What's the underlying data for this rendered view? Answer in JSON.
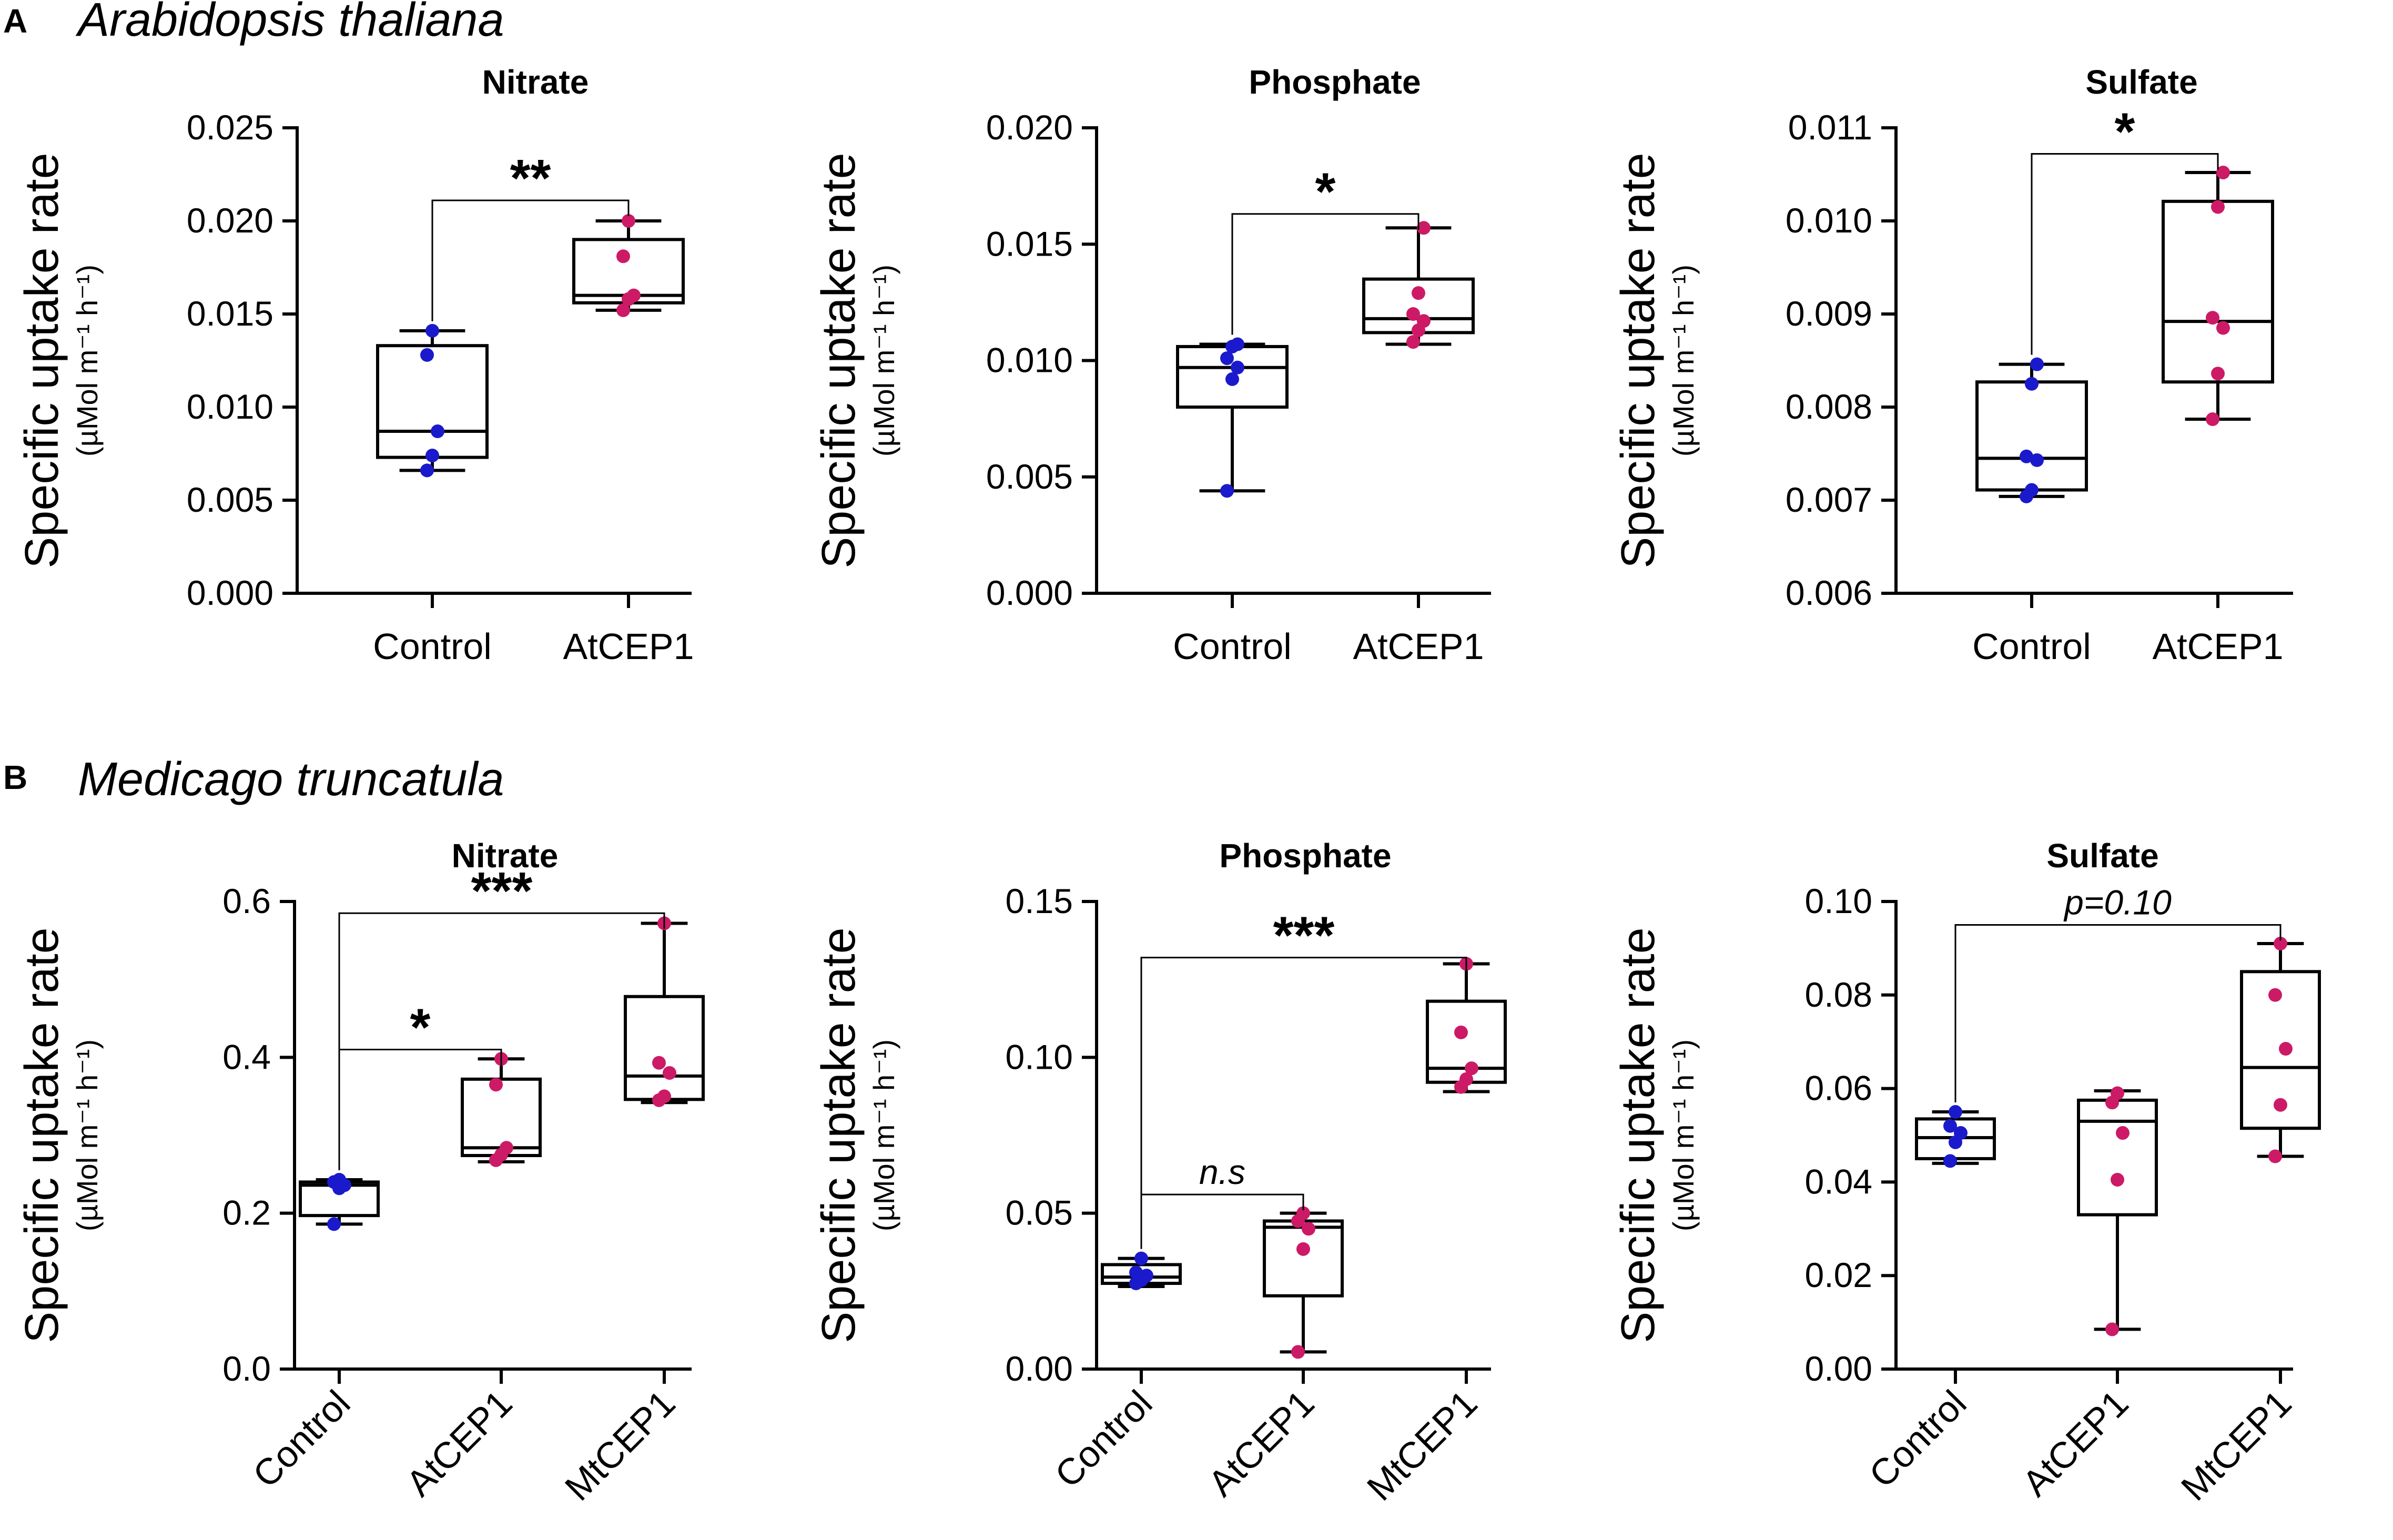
{
  "chart_data": [
    {
      "type": "box",
      "panel": "A",
      "species": "Arabidopsis thaliana",
      "title": "Nitrate",
      "ylabel": "Specific uptake rate",
      "yunit": "(µMol m⁻¹ h⁻¹)",
      "ylim": [
        0,
        0.025
      ],
      "yticks": [
        0.0,
        0.005,
        0.01,
        0.015,
        0.02,
        0.025
      ],
      "ytick_labels": [
        "0.000",
        "0.005",
        "0.010",
        "0.015",
        "0.020",
        "0.025"
      ],
      "categories": [
        "Control",
        "AtCEP1"
      ],
      "rotate_labels": false,
      "groups": [
        {
          "name": "Control",
          "color": "#1a1acc",
          "min": 0.0066,
          "q1": 0.0073,
          "median": 0.0087,
          "q3": 0.0133,
          "max": 0.0141,
          "points": [
            0.0066,
            0.0074,
            0.0087,
            0.0128,
            0.0141
          ]
        },
        {
          "name": "AtCEP1",
          "color": "#cc1a66",
          "min": 0.0152,
          "q1": 0.0156,
          "median": 0.016,
          "q3": 0.019,
          "max": 0.02,
          "points": [
            0.0152,
            0.0158,
            0.016,
            0.0181,
            0.02
          ]
        }
      ],
      "annotations": [
        {
          "from": 0,
          "to": 1,
          "text": "**",
          "level": 0.0211
        }
      ]
    },
    {
      "type": "box",
      "panel": "A",
      "title": "Phosphate",
      "ylabel": "Specific uptake rate",
      "yunit": "(µMol m⁻¹ h⁻¹)",
      "ylim": [
        0,
        0.02
      ],
      "yticks": [
        0.0,
        0.005,
        0.01,
        0.015,
        0.02
      ],
      "ytick_labels": [
        "0.000",
        "0.005",
        "0.010",
        "0.015",
        "0.020"
      ],
      "categories": [
        "Control",
        "AtCEP1"
      ],
      "rotate_labels": false,
      "groups": [
        {
          "name": "Control",
          "color": "#1a1acc",
          "min": 0.0044,
          "q1": 0.008,
          "median": 0.0097,
          "q3": 0.0106,
          "max": 0.0107,
          "points": [
            0.0044,
            0.0092,
            0.0097,
            0.0101,
            0.0106,
            0.0107
          ]
        },
        {
          "name": "AtCEP1",
          "color": "#cc1a66",
          "min": 0.0107,
          "q1": 0.0112,
          "median": 0.0118,
          "q3": 0.0135,
          "max": 0.0157,
          "points": [
            0.0108,
            0.0113,
            0.0117,
            0.012,
            0.0129,
            0.0157
          ]
        }
      ],
      "annotations": [
        {
          "from": 0,
          "to": 1,
          "text": "*",
          "level": 0.0163
        }
      ]
    },
    {
      "type": "box",
      "panel": "A",
      "title": "Sulfate",
      "ylabel": "Specific uptake rate",
      "yunit": "(µMol m⁻¹ h⁻¹)",
      "ylim": [
        0.006,
        0.011
      ],
      "yticks": [
        0.006,
        0.007,
        0.008,
        0.009,
        0.01,
        0.011
      ],
      "ytick_labels": [
        "0.006",
        "0.007",
        "0.008",
        "0.009",
        "0.010",
        "0.011"
      ],
      "categories": [
        "Control",
        "AtCEP1"
      ],
      "rotate_labels": false,
      "groups": [
        {
          "name": "Control",
          "color": "#1a1acc",
          "min": 0.00704,
          "q1": 0.00711,
          "median": 0.00745,
          "q3": 0.00827,
          "max": 0.00846,
          "points": [
            0.00704,
            0.00711,
            0.00743,
            0.00747,
            0.00825,
            0.00846
          ]
        },
        {
          "name": "AtCEP1",
          "color": "#cc1a66",
          "min": 0.00787,
          "q1": 0.00827,
          "median": 0.00892,
          "q3": 0.01021,
          "max": 0.01052,
          "points": [
            0.00787,
            0.00836,
            0.00885,
            0.00896,
            0.01015,
            0.01052
          ]
        }
      ],
      "annotations": [
        {
          "from": 0,
          "to": 1,
          "text": "*",
          "level": 0.01072
        }
      ]
    },
    {
      "type": "box",
      "panel": "B",
      "species": "Medicago truncatula",
      "title": "Nitrate",
      "ylabel": "Specific uptake rate",
      "yunit": "(µMol m⁻¹ h⁻¹)",
      "ylim": [
        0,
        0.6
      ],
      "yticks": [
        0.0,
        0.2,
        0.4,
        0.6
      ],
      "ytick_labels": [
        "0.0",
        "0.2",
        "0.4",
        "0.6"
      ],
      "categories": [
        "Control",
        "AtCEP1",
        "MtCEP1"
      ],
      "rotate_labels": true,
      "groups": [
        {
          "name": "Control",
          "color": "#1a1acc",
          "min": 0.186,
          "q1": 0.197,
          "median": 0.236,
          "q3": 0.24,
          "max": 0.243,
          "points": [
            0.186,
            0.232,
            0.236,
            0.24,
            0.243
          ]
        },
        {
          "name": "AtCEP1",
          "color": "#cc1a66",
          "min": 0.266,
          "q1": 0.274,
          "median": 0.284,
          "q3": 0.372,
          "max": 0.398,
          "points": [
            0.268,
            0.275,
            0.284,
            0.365,
            0.398
          ]
        },
        {
          "name": "MtCEP1",
          "color": "#cc1a66",
          "min": 0.342,
          "q1": 0.346,
          "median": 0.376,
          "q3": 0.478,
          "max": 0.572,
          "points": [
            0.345,
            0.35,
            0.38,
            0.393,
            0.572
          ]
        }
      ],
      "annotations": [
        {
          "from": 0,
          "to": 1,
          "text": "*",
          "level": 0.41
        },
        {
          "from": 0,
          "to": 2,
          "text": "***",
          "level": 0.585
        }
      ]
    },
    {
      "type": "box",
      "panel": "B",
      "title": "Phosphate",
      "ylabel": "Specific uptake rate",
      "yunit": "(µMol m⁻¹ h⁻¹)",
      "ylim": [
        0,
        0.15
      ],
      "yticks": [
        0.0,
        0.05,
        0.1,
        0.15
      ],
      "ytick_labels": [
        "0.00",
        "0.05",
        "0.10",
        "0.15"
      ],
      "categories": [
        "Control",
        "AtCEP1",
        "MtCEP1"
      ],
      "rotate_labels": true,
      "groups": [
        {
          "name": "Control",
          "color": "#1a1acc",
          "min": 0.0265,
          "q1": 0.0275,
          "median": 0.0295,
          "q3": 0.0335,
          "max": 0.0355,
          "points": [
            0.0275,
            0.0285,
            0.03,
            0.031,
            0.0355
          ]
        },
        {
          "name": "AtCEP1",
          "color": "#cc1a66",
          "min": 0.0055,
          "q1": 0.0235,
          "median": 0.0455,
          "q3": 0.0475,
          "max": 0.05,
          "points": [
            0.0055,
            0.0385,
            0.045,
            0.0475,
            0.05
          ]
        },
        {
          "name": "MtCEP1",
          "color": "#cc1a66",
          "min": 0.089,
          "q1": 0.092,
          "median": 0.0965,
          "q3": 0.118,
          "max": 0.13,
          "points": [
            0.0905,
            0.093,
            0.0965,
            0.108,
            0.13
          ]
        }
      ],
      "annotations": [
        {
          "from": 0,
          "to": 1,
          "text": "n.s",
          "level": 0.056
        },
        {
          "from": 0,
          "to": 2,
          "text": "***",
          "level": 0.132
        }
      ]
    },
    {
      "type": "box",
      "panel": "B",
      "title": "Sulfate",
      "ylabel": "Specific uptake rate",
      "yunit": "(µMol m⁻¹ h⁻¹)",
      "ylim": [
        0,
        0.1
      ],
      "yticks": [
        0.0,
        0.02,
        0.04,
        0.06,
        0.08,
        0.1
      ],
      "ytick_labels": [
        "0.00",
        "0.02",
        "0.04",
        "0.06",
        "0.08",
        "0.10"
      ],
      "categories": [
        "Control",
        "AtCEP1",
        "MtCEP1"
      ],
      "rotate_labels": true,
      "groups": [
        {
          "name": "Control",
          "color": "#1a1acc",
          "min": 0.044,
          "q1": 0.045,
          "median": 0.0495,
          "q3": 0.0535,
          "max": 0.055,
          "points": [
            0.0445,
            0.0485,
            0.0505,
            0.052,
            0.055
          ]
        },
        {
          "name": "AtCEP1",
          "color": "#cc1a66",
          "min": 0.0085,
          "q1": 0.033,
          "median": 0.053,
          "q3": 0.0575,
          "max": 0.0595,
          "points": [
            0.0085,
            0.0405,
            0.0505,
            0.057,
            0.059
          ]
        },
        {
          "name": "MtCEP1",
          "color": "#cc1a66",
          "min": 0.0455,
          "q1": 0.0515,
          "median": 0.0645,
          "q3": 0.085,
          "max": 0.091,
          "points": [
            0.0455,
            0.0565,
            0.0685,
            0.08,
            0.091
          ]
        }
      ],
      "annotations": [
        {
          "from": 0,
          "to": 2,
          "text": "p=0.10",
          "level": 0.095
        }
      ]
    }
  ],
  "labels": {
    "panel_a": "A",
    "panel_b": "B",
    "species_a": "Arabidopsis thaliana",
    "species_b": "Medicago truncatula"
  }
}
